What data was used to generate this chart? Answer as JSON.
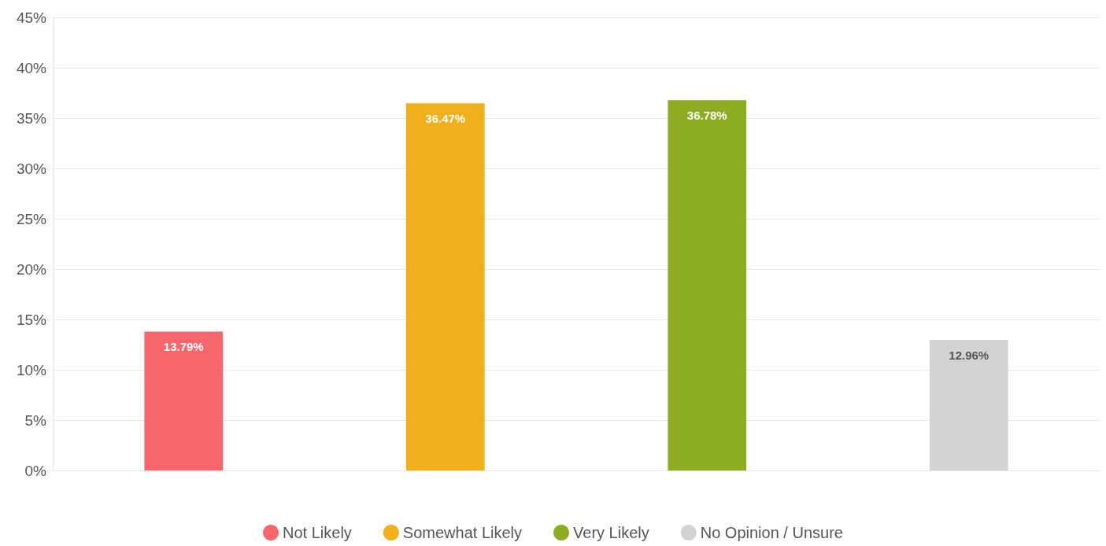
{
  "chart_data": {
    "type": "bar",
    "categories": [
      null,
      null,
      null,
      null
    ],
    "series": [
      {
        "name": "Not Likely",
        "color": "#f7666c",
        "values": [
          13.79,
          null,
          null,
          null
        ],
        "value_labels": [
          "13.79%",
          null,
          null,
          null
        ]
      },
      {
        "name": "Somewhat Likely",
        "color": "#f0b01e",
        "values": [
          null,
          36.47,
          null,
          null
        ],
        "value_labels": [
          null,
          "36.47%",
          null,
          null
        ]
      },
      {
        "name": "Very Likely",
        "color": "#8cac22",
        "values": [
          null,
          null,
          36.78,
          null
        ],
        "value_labels": [
          null,
          null,
          "36.78%",
          null
        ]
      },
      {
        "name": "No Opinion / Unsure",
        "color": "#d3d3d3",
        "values": [
          null,
          null,
          null,
          12.96
        ],
        "value_labels": [
          null,
          null,
          null,
          "12.96%"
        ]
      }
    ],
    "ylim": [
      0,
      45
    ],
    "yticks": [
      {
        "value": 0,
        "label": "0%"
      },
      {
        "value": 5,
        "label": "5%"
      },
      {
        "value": 10,
        "label": "10%"
      },
      {
        "value": 15,
        "label": "15%"
      },
      {
        "value": 20,
        "label": "20%"
      },
      {
        "value": 25,
        "label": "25%"
      },
      {
        "value": 30,
        "label": "30%"
      },
      {
        "value": 35,
        "label": "35%"
      },
      {
        "value": 40,
        "label": "40%"
      },
      {
        "value": 45,
        "label": "45%"
      }
    ],
    "grid": "y",
    "legend": "bottom"
  }
}
